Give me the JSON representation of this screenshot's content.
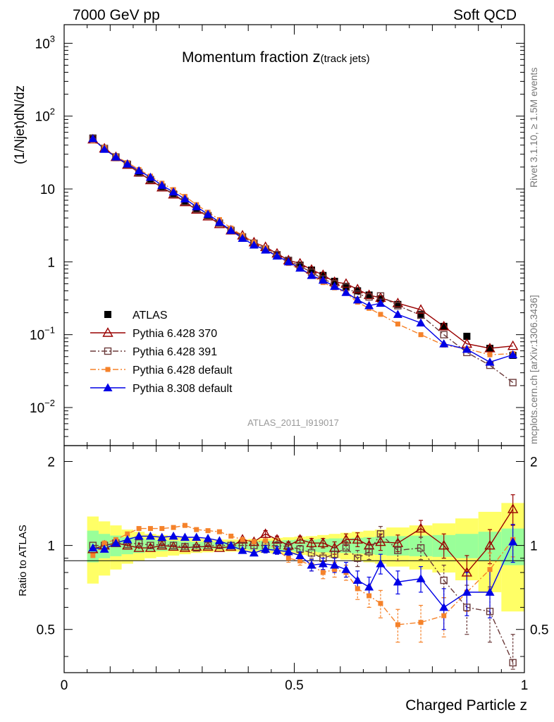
{
  "header": {
    "energy": "7000 GeV pp",
    "process": "Soft QCD",
    "title": "Momentum fraction",
    "title_z": "z",
    "title_sub": "(track jets)",
    "analysis_id": "ATLAS_2011_I919017",
    "side_top": "Rivet 3.1.10, ≥ 1.5M events",
    "side_bottom": "mcplots.cern.ch [arXiv:1306.3436]"
  },
  "colors": {
    "atlas": "#000000",
    "p370": "#990000",
    "p391": "#6b3a3a",
    "p6def": "#f5822a",
    "p8def": "#0000e6",
    "band_inner": "#99ff99",
    "band_outer": "#ffff66"
  },
  "chart_data": [
    {
      "type": "line",
      "yscale": "log",
      "ylabel": "(1/Njet)dN/dz",
      "xlim": [
        0,
        1
      ],
      "ylim": [
        0.003,
        1800
      ],
      "yticks": [
        {
          "base": "10",
          "exp": "−2"
        },
        {
          "base": "10",
          "exp": "−1"
        },
        {
          "base": "1",
          "exp": ""
        },
        {
          "base": "10",
          "exp": ""
        },
        {
          "base": "10",
          "exp": "2"
        },
        {
          "base": "10",
          "exp": "3"
        }
      ],
      "ytick_values": [
        0.01,
        0.1,
        1,
        10,
        100,
        1000
      ],
      "legend_position": "left",
      "x": [
        0.0625,
        0.0875,
        0.1125,
        0.1375,
        0.1625,
        0.1875,
        0.2125,
        0.2375,
        0.2625,
        0.2875,
        0.3125,
        0.3375,
        0.3625,
        0.3875,
        0.4125,
        0.4375,
        0.4625,
        0.4875,
        0.5125,
        0.5375,
        0.5625,
        0.5875,
        0.6125,
        0.6375,
        0.6625,
        0.6875,
        0.725,
        0.775,
        0.825,
        0.875,
        0.925,
        0.975
      ],
      "series": [
        {
          "name": "ATLAS",
          "key": "atlas",
          "marker": "square-filled",
          "values": [
            50,
            36,
            27,
            21.5,
            16.5,
            13.5,
            10.5,
            8.5,
            6.8,
            5.4,
            4.3,
            3.4,
            2.7,
            2.2,
            1.8,
            1.5,
            1.25,
            1.05,
            0.9,
            0.77,
            0.65,
            0.54,
            0.46,
            0.4,
            0.35,
            0.31,
            0.26,
            0.19,
            0.13,
            0.095,
            0.065,
            0.052
          ]
        },
        {
          "name": "Pythia 6.428 370",
          "key": "p370",
          "marker": "triangle-open",
          "line": "solid",
          "values": [
            48,
            36,
            27.5,
            21.5,
            16.8,
            13.2,
            10.5,
            8.4,
            6.6,
            5.2,
            4.2,
            3.3,
            2.7,
            2.3,
            1.85,
            1.6,
            1.3,
            1.05,
            0.95,
            0.78,
            0.66,
            0.53,
            0.5,
            0.42,
            0.35,
            0.32,
            0.27,
            0.22,
            0.13,
            0.075,
            0.065,
            0.07
          ]
        },
        {
          "name": "Pythia 6.428 391",
          "key": "p391",
          "marker": "square-open",
          "line": "dashdot",
          "values": [
            49,
            36,
            27.5,
            21.8,
            16.8,
            13.4,
            10.6,
            8.5,
            6.7,
            5.3,
            4.3,
            3.4,
            2.7,
            2.2,
            1.8,
            1.5,
            1.25,
            1.04,
            0.87,
            0.72,
            0.58,
            0.5,
            0.45,
            0.36,
            0.33,
            0.34,
            0.25,
            0.185,
            0.1,
            0.057,
            0.038,
            0.022
          ]
        },
        {
          "name": "Pythia 6.428 default",
          "key": "p6def",
          "marker": "square-small",
          "line": "dashdot",
          "values": [
            46,
            37,
            28,
            23,
            18.5,
            15,
            12,
            9.8,
            7.9,
            6.1,
            4.8,
            3.8,
            2.9,
            2.3,
            1.85,
            1.55,
            1.2,
            0.95,
            0.8,
            0.65,
            0.52,
            0.44,
            0.37,
            0.28,
            0.23,
            0.19,
            0.14,
            0.1,
            0.072,
            0.064,
            0.053,
            0.055
          ]
        },
        {
          "name": "Pythia 8.308 default",
          "key": "p8def",
          "marker": "triangle-filled",
          "line": "solid",
          "values": [
            49,
            35,
            27.5,
            22,
            17.8,
            14.5,
            11.2,
            9.1,
            7.3,
            5.7,
            4.5,
            3.5,
            2.7,
            2.1,
            1.7,
            1.45,
            1.2,
            1.0,
            0.82,
            0.65,
            0.56,
            0.46,
            0.38,
            0.3,
            0.25,
            0.27,
            0.19,
            0.145,
            0.075,
            0.063,
            0.042,
            0.053
          ]
        }
      ]
    },
    {
      "type": "line",
      "ylabel": "Ratio to ATLAS",
      "xlabel": "Charged Particle z",
      "xlim": [
        0,
        1
      ],
      "ylim": [
        0.35,
        2.28
      ],
      "xticks": [
        "0",
        "0.5",
        "1"
      ],
      "xtick_values": [
        0,
        0.5,
        1
      ],
      "yticks": [
        "0.5",
        "1",
        "2"
      ],
      "ytick_values": [
        0.5,
        1,
        2
      ],
      "x": [
        0.0625,
        0.0875,
        0.1125,
        0.1375,
        0.1625,
        0.1875,
        0.2125,
        0.2375,
        0.2625,
        0.2875,
        0.3125,
        0.3375,
        0.3625,
        0.3875,
        0.4125,
        0.4375,
        0.4625,
        0.4875,
        0.5125,
        0.5375,
        0.5625,
        0.5875,
        0.6125,
        0.6375,
        0.6625,
        0.6875,
        0.725,
        0.775,
        0.825,
        0.875,
        0.925,
        0.975
      ],
      "band_edges": [
        0.05,
        0.075,
        0.1,
        0.125,
        0.15,
        0.175,
        0.2,
        0.225,
        0.25,
        0.275,
        0.3,
        0.325,
        0.35,
        0.375,
        0.4,
        0.425,
        0.45,
        0.475,
        0.5,
        0.525,
        0.55,
        0.575,
        0.6,
        0.625,
        0.65,
        0.675,
        0.7,
        0.75,
        0.8,
        0.85,
        0.9,
        0.95,
        1.0
      ],
      "band_inner": [
        0.13,
        0.1,
        0.085,
        0.07,
        0.06,
        0.05,
        0.045,
        0.04,
        0.035,
        0.03,
        0.03,
        0.03,
        0.03,
        0.03,
        0.035,
        0.04,
        0.04,
        0.045,
        0.05,
        0.05,
        0.055,
        0.06,
        0.06,
        0.065,
        0.07,
        0.075,
        0.08,
        0.085,
        0.09,
        0.1,
        0.12,
        0.15
      ],
      "band_outer": [
        0.27,
        0.22,
        0.18,
        0.14,
        0.12,
        0.1,
        0.09,
        0.08,
        0.07,
        0.06,
        0.055,
        0.05,
        0.05,
        0.05,
        0.055,
        0.06,
        0.065,
        0.07,
        0.075,
        0.08,
        0.09,
        0.1,
        0.11,
        0.12,
        0.13,
        0.14,
        0.16,
        0.18,
        0.2,
        0.25,
        0.32,
        0.42
      ],
      "series": [
        {
          "name": "Pythia 6.428 370",
          "key": "p370",
          "marker": "triangle-open",
          "line": "solid",
          "values": [
            0.97,
            1.0,
            1.02,
            1.0,
            0.98,
            0.98,
            1.0,
            0.99,
            0.98,
            0.99,
            0.99,
            0.98,
            0.99,
            1.05,
            1.03,
            1.1,
            1.05,
            1.0,
            1.05,
            1.02,
            1.02,
            0.98,
            1.05,
            1.05,
            1.0,
            1.03,
            1.02,
            1.15,
            1.0,
            0.8,
            1.0,
            1.35
          ],
          "err": [
            0.01,
            0.01,
            0.01,
            0.01,
            0.01,
            0.01,
            0.01,
            0.01,
            0.01,
            0.01,
            0.01,
            0.01,
            0.02,
            0.02,
            0.02,
            0.03,
            0.03,
            0.03,
            0.03,
            0.04,
            0.04,
            0.05,
            0.05,
            0.06,
            0.06,
            0.07,
            0.07,
            0.08,
            0.1,
            0.12,
            0.14,
            0.17
          ]
        },
        {
          "name": "Pythia 6.428 391",
          "key": "p391",
          "marker": "square-open",
          "line": "dashdot",
          "values": [
            1.0,
            1.0,
            1.02,
            1.01,
            1.02,
            1.0,
            1.01,
            1.0,
            0.99,
            0.98,
            1.0,
            1.0,
            1.0,
            1.0,
            1.0,
            1.0,
            1.0,
            0.99,
            0.97,
            0.94,
            0.9,
            0.93,
            0.98,
            0.9,
            0.95,
            1.1,
            0.96,
            0.98,
            0.75,
            0.6,
            0.58,
            0.38
          ],
          "err": [
            0.01,
            0.01,
            0.01,
            0.01,
            0.01,
            0.01,
            0.01,
            0.01,
            0.01,
            0.01,
            0.01,
            0.01,
            0.02,
            0.02,
            0.02,
            0.03,
            0.03,
            0.03,
            0.03,
            0.04,
            0.04,
            0.05,
            0.05,
            0.06,
            0.06,
            0.07,
            0.08,
            0.09,
            0.1,
            0.12,
            0.13,
            0.1
          ]
        },
        {
          "name": "Pythia 6.428 default",
          "key": "p6def",
          "marker": "square-small",
          "line": "dashdot",
          "values": [
            0.92,
            1.02,
            1.05,
            1.1,
            1.15,
            1.15,
            1.15,
            1.16,
            1.18,
            1.14,
            1.13,
            1.12,
            1.08,
            1.05,
            1.03,
            1.04,
            0.96,
            0.9,
            0.88,
            0.85,
            0.8,
            0.82,
            0.8,
            0.7,
            0.66,
            0.62,
            0.52,
            0.53,
            0.56,
            0.68,
            0.82,
            1.05
          ],
          "err": [
            0.01,
            0.01,
            0.01,
            0.01,
            0.01,
            0.01,
            0.01,
            0.01,
            0.01,
            0.01,
            0.01,
            0.01,
            0.02,
            0.02,
            0.02,
            0.03,
            0.03,
            0.03,
            0.03,
            0.04,
            0.04,
            0.05,
            0.05,
            0.06,
            0.06,
            0.07,
            0.07,
            0.08,
            0.09,
            0.1,
            0.12,
            0.14
          ]
        },
        {
          "name": "Pythia 8.308 default",
          "key": "p8def",
          "marker": "triangle-filled",
          "line": "solid",
          "values": [
            0.98,
            0.97,
            1.02,
            1.05,
            1.08,
            1.08,
            1.07,
            1.08,
            1.07,
            1.07,
            1.06,
            1.04,
            1.0,
            0.96,
            0.94,
            0.97,
            0.96,
            0.95,
            0.92,
            0.85,
            0.86,
            0.85,
            0.82,
            0.75,
            0.71,
            0.86,
            0.74,
            0.76,
            0.6,
            0.68,
            0.68,
            1.03
          ],
          "err": [
            0.01,
            0.01,
            0.01,
            0.01,
            0.01,
            0.01,
            0.01,
            0.01,
            0.01,
            0.01,
            0.01,
            0.01,
            0.02,
            0.02,
            0.02,
            0.03,
            0.03,
            0.03,
            0.03,
            0.04,
            0.04,
            0.05,
            0.05,
            0.06,
            0.06,
            0.07,
            0.07,
            0.08,
            0.1,
            0.12,
            0.13,
            0.16
          ]
        }
      ]
    }
  ]
}
